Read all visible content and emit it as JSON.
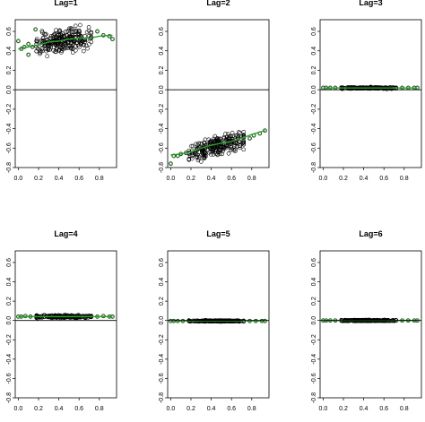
{
  "chart_data": [
    {
      "type": "scatter",
      "title": "Lag=1",
      "xlim": [
        -0.03,
        0.97
      ],
      "ylim": [
        -0.8,
        0.72
      ],
      "xticks": [
        "0.0",
        "0.2",
        "0.4",
        "0.6",
        "0.8"
      ],
      "yticks": [
        "-0.8",
        "-0.4",
        "0.0",
        "0.4"
      ],
      "yticks_minor": [
        "-0.6",
        "-0.2",
        "0.2",
        "0.6"
      ],
      "reference_line_y": 0,
      "points": {
        "x_min": 0.18,
        "x_max": 0.72,
        "y_intercept": 0.42,
        "y_slope": 0.18,
        "spread": 0.055,
        "n": 260
      },
      "tail_points": [
        [
          0.0,
          0.5
        ],
        [
          0.03,
          0.42
        ],
        [
          0.06,
          0.44
        ],
        [
          0.1,
          0.36
        ],
        [
          0.1,
          0.47
        ],
        [
          0.14,
          0.44
        ],
        [
          0.17,
          0.62
        ],
        [
          0.78,
          0.6
        ],
        [
          0.84,
          0.56
        ],
        [
          0.9,
          0.55
        ],
        [
          0.93,
          0.52
        ]
      ],
      "smooth_line": [
        [
          0.0,
          0.42
        ],
        [
          0.1,
          0.44
        ],
        [
          0.2,
          0.46
        ],
        [
          0.3,
          0.49
        ],
        [
          0.4,
          0.5
        ],
        [
          0.5,
          0.52
        ],
        [
          0.6,
          0.53
        ],
        [
          0.7,
          0.53
        ],
        [
          0.8,
          0.55
        ],
        [
          0.93,
          0.56
        ]
      ]
    },
    {
      "type": "scatter",
      "title": "Lag=2",
      "xlim": [
        -0.03,
        0.97
      ],
      "ylim": [
        -0.8,
        0.72
      ],
      "xticks": [
        "0.0",
        "0.2",
        "0.4",
        "0.6",
        "0.8"
      ],
      "yticks": [
        "-0.8",
        "-0.4",
        "0.0",
        "0.4"
      ],
      "yticks_minor": [
        "-0.6",
        "-0.2",
        "0.2",
        "0.6"
      ],
      "reference_line_y": 0,
      "points": {
        "x_min": 0.18,
        "x_max": 0.72,
        "y_intercept": -0.7,
        "y_slope": 0.26,
        "spread": 0.05,
        "n": 260
      },
      "tail_points": [
        [
          0.0,
          -0.76
        ],
        [
          0.03,
          -0.68
        ],
        [
          0.07,
          -0.68
        ],
        [
          0.1,
          -0.66
        ],
        [
          0.15,
          -0.65
        ],
        [
          0.78,
          -0.5
        ],
        [
          0.82,
          -0.47
        ],
        [
          0.88,
          -0.45
        ],
        [
          0.93,
          -0.42
        ]
      ],
      "smooth_line": [
        [
          0.0,
          -0.67
        ],
        [
          0.1,
          -0.66
        ],
        [
          0.2,
          -0.64
        ],
        [
          0.3,
          -0.6
        ],
        [
          0.4,
          -0.57
        ],
        [
          0.5,
          -0.55
        ],
        [
          0.6,
          -0.53
        ],
        [
          0.7,
          -0.5
        ],
        [
          0.8,
          -0.46
        ],
        [
          0.93,
          -0.42
        ]
      ]
    },
    {
      "type": "scatter",
      "title": "Lag=3",
      "xlim": [
        -0.03,
        0.97
      ],
      "ylim": [
        -0.8,
        0.72
      ],
      "xticks": [
        "0.0",
        "0.2",
        "0.4",
        "0.6",
        "0.8"
      ],
      "yticks": [
        "-0.8",
        "-0.4",
        "0.0",
        "0.4"
      ],
      "yticks_minor": [
        "-0.6",
        "-0.2",
        "0.2",
        "0.6"
      ],
      "reference_line_y": 0,
      "points": {
        "x_min": 0.18,
        "x_max": 0.72,
        "y_intercept": 0.018,
        "y_slope": 0,
        "spread": 0.004,
        "n": 220
      },
      "tail_points": [
        [
          0.0,
          0.02
        ],
        [
          0.03,
          0.02
        ],
        [
          0.07,
          0.02
        ],
        [
          0.12,
          0.02
        ],
        [
          0.78,
          0.02
        ],
        [
          0.84,
          0.02
        ],
        [
          0.9,
          0.02
        ],
        [
          0.93,
          0.02
        ]
      ],
      "smooth_line": [
        [
          0.0,
          0.018
        ],
        [
          0.93,
          0.018
        ]
      ]
    },
    {
      "type": "scatter",
      "title": "Lag=4",
      "xlim": [
        -0.03,
        0.97
      ],
      "ylim": [
        -0.8,
        0.72
      ],
      "xticks": [
        "0.0",
        "0.2",
        "0.4",
        "0.6",
        "0.8"
      ],
      "yticks": [
        "-0.8",
        "-0.4",
        "0.0",
        "0.4"
      ],
      "yticks_minor": [
        "-0.6",
        "-0.2",
        "0.2",
        "0.6"
      ],
      "reference_line_y": 0,
      "points": {
        "x_min": 0.18,
        "x_max": 0.72,
        "y_intercept": 0.04,
        "y_slope": 0,
        "spread": 0.007,
        "n": 220
      },
      "tail_points": [
        [
          0.0,
          0.04
        ],
        [
          0.03,
          0.04
        ],
        [
          0.07,
          0.045
        ],
        [
          0.12,
          0.04
        ],
        [
          0.78,
          0.04
        ],
        [
          0.84,
          0.045
        ],
        [
          0.9,
          0.04
        ],
        [
          0.93,
          0.04
        ]
      ],
      "smooth_line": [
        [
          0.0,
          0.04
        ],
        [
          0.93,
          0.04
        ]
      ]
    },
    {
      "type": "scatter",
      "title": "Lag=5",
      "xlim": [
        -0.03,
        0.97
      ],
      "ylim": [
        -0.8,
        0.72
      ],
      "xticks": [
        "0.0",
        "0.2",
        "0.4",
        "0.6",
        "0.8"
      ],
      "yticks": [
        "-0.8",
        "-0.4",
        "0.0",
        "0.4"
      ],
      "yticks_minor": [
        "-0.6",
        "-0.2",
        "0.2",
        "0.6"
      ],
      "reference_line_y": 0,
      "points": {
        "x_min": 0.18,
        "x_max": 0.72,
        "y_intercept": -0.005,
        "y_slope": 0,
        "spread": 0.003,
        "n": 220
      },
      "tail_points": [
        [
          0.0,
          -0.005
        ],
        [
          0.03,
          -0.005
        ],
        [
          0.07,
          -0.005
        ],
        [
          0.12,
          -0.005
        ],
        [
          0.78,
          -0.005
        ],
        [
          0.84,
          -0.005
        ],
        [
          0.9,
          -0.005
        ],
        [
          0.93,
          -0.005
        ]
      ],
      "smooth_line": [
        [
          0.0,
          -0.005
        ],
        [
          0.93,
          -0.005
        ]
      ]
    },
    {
      "type": "scatter",
      "title": "Lag=6",
      "xlim": [
        -0.03,
        0.97
      ],
      "ylim": [
        -0.8,
        0.72
      ],
      "xticks": [
        "0.0",
        "0.2",
        "0.4",
        "0.6",
        "0.8"
      ],
      "yticks": [
        "-0.8",
        "-0.4",
        "0.0",
        "0.4"
      ],
      "yticks_minor": [
        "-0.6",
        "-0.2",
        "0.2",
        "0.6"
      ],
      "reference_line_y": 0,
      "points": {
        "x_min": 0.18,
        "x_max": 0.72,
        "y_intercept": 0.0,
        "y_slope": 0,
        "spread": 0.003,
        "n": 220
      },
      "tail_points": [
        [
          0.0,
          0.0
        ],
        [
          0.03,
          0.0
        ],
        [
          0.07,
          0.0
        ],
        [
          0.12,
          0.0
        ],
        [
          0.78,
          0.0
        ],
        [
          0.84,
          0.0
        ],
        [
          0.9,
          0.0
        ],
        [
          0.93,
          0.0
        ]
      ],
      "smooth_line": [
        [
          0.0,
          0.0
        ],
        [
          0.93,
          0.0
        ]
      ]
    }
  ],
  "colors": {
    "points": "#000000",
    "smooth_line": "#2ca02c",
    "tail_points": "#2e8b2e",
    "axis": "#000000",
    "background": "#ffffff"
  }
}
